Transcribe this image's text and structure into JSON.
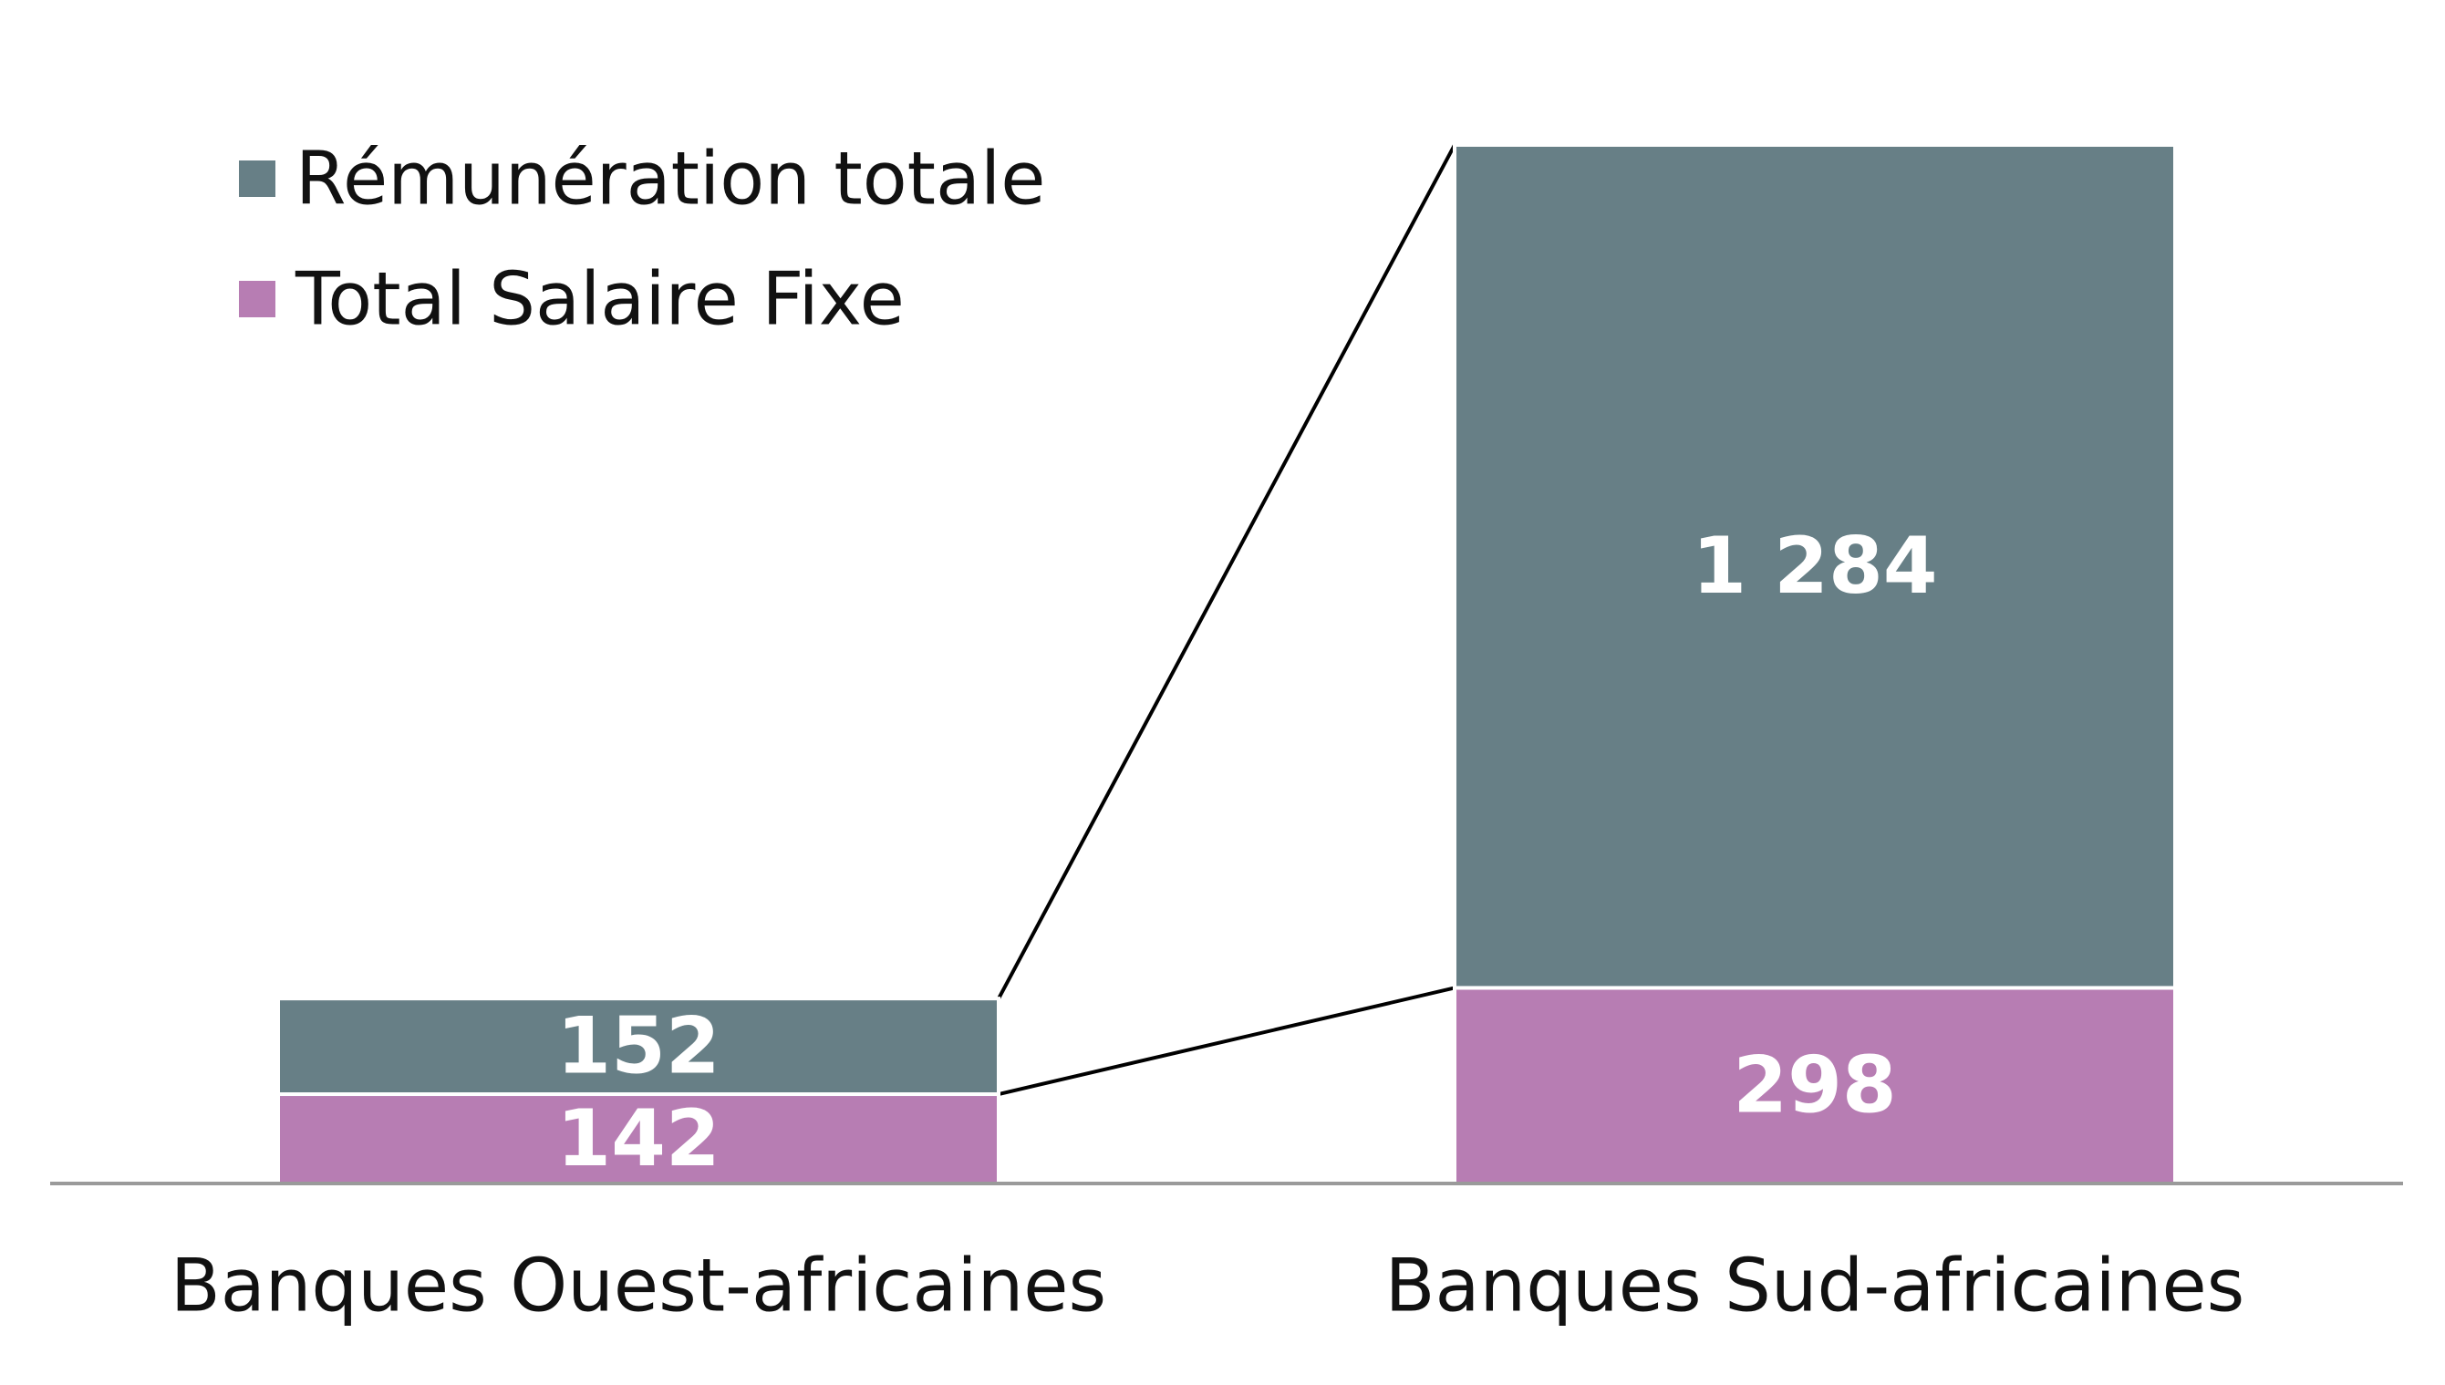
{
  "chart_data": {
    "type": "bar",
    "stacked": true,
    "categories": [
      "Banques Ouest-africaines",
      "Banques Sud-africaines"
    ],
    "series": [
      {
        "name": "Total Salaire Fixe",
        "values": [
          142,
          298
        ],
        "labels": [
          "142",
          "298"
        ],
        "color": "#b77db3"
      },
      {
        "name": "Rémunération totale",
        "values": [
          152,
          1284
        ],
        "labels": [
          "152",
          "1 284"
        ],
        "color": "#677f86"
      }
    ],
    "legend": {
      "position": "top-left",
      "order": [
        "Rémunération totale",
        "Total Salaire Fixe"
      ]
    },
    "grid": false,
    "title": "",
    "xlabel": "",
    "ylabel": "",
    "axis_color": "#9a9a9a",
    "connector_color": "#000000"
  }
}
